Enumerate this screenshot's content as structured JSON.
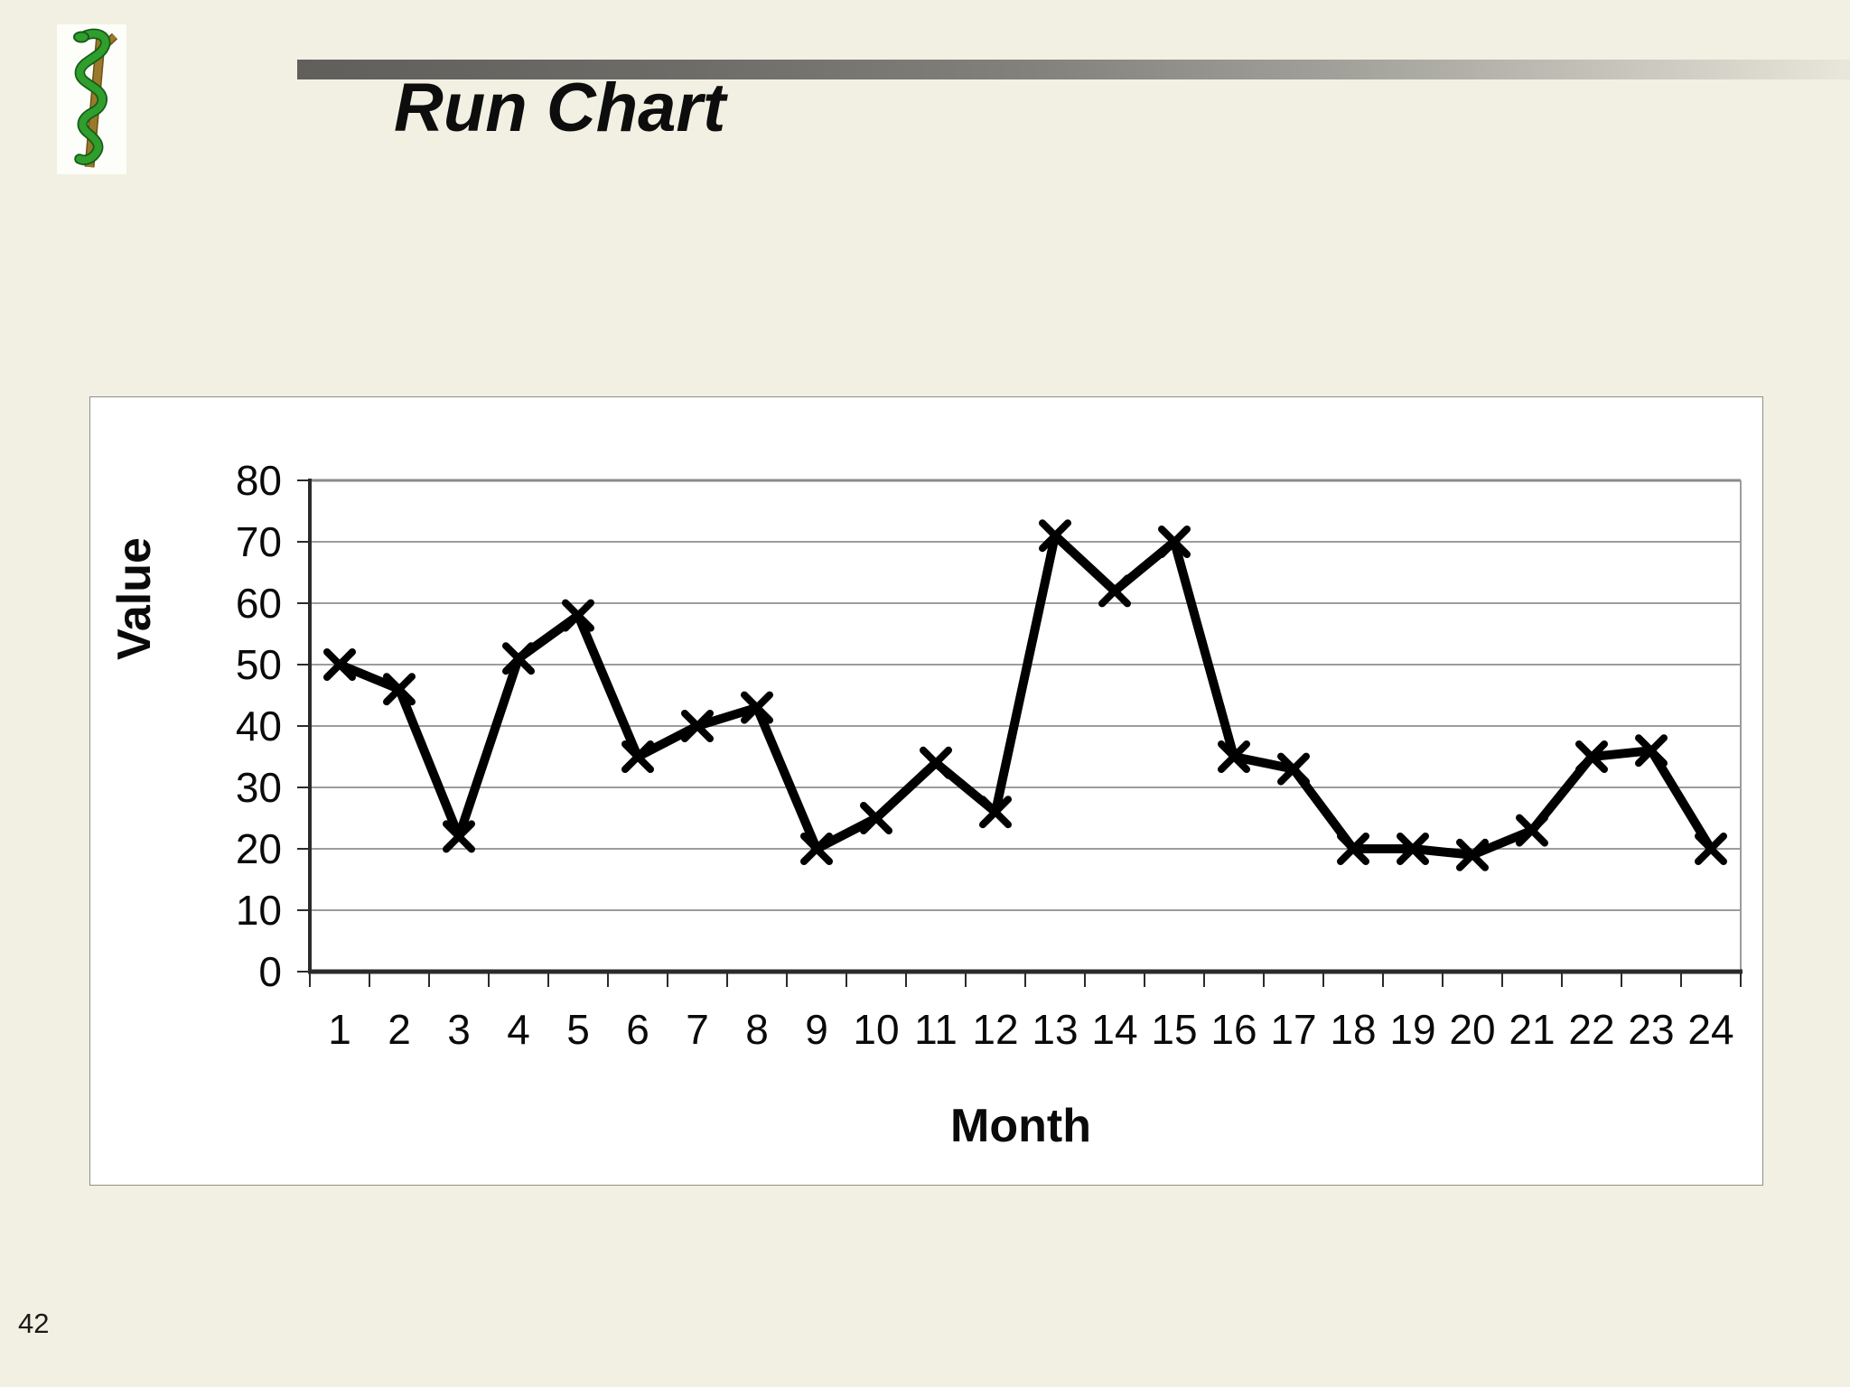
{
  "slide": {
    "title": "Run Chart",
    "page_number": "42",
    "background_color": "#f1f0e2"
  },
  "logo": {
    "name": "rod-of-asclepius-logo",
    "staff_color": "#9a7a2a",
    "snake_color": "#2f9e2d",
    "snake_outline_color": "#155d18"
  },
  "chart_data": {
    "type": "line",
    "title": "",
    "categories": [
      1,
      2,
      3,
      4,
      5,
      6,
      7,
      8,
      9,
      10,
      11,
      12,
      13,
      14,
      15,
      16,
      17,
      18,
      19,
      20,
      21,
      22,
      23,
      24
    ],
    "values": [
      50,
      46,
      22,
      51,
      58,
      35,
      40,
      43,
      20,
      25,
      34,
      26,
      71,
      62,
      70,
      35,
      33,
      20,
      20,
      19,
      23,
      35,
      36,
      20
    ],
    "xlabel": "Month",
    "ylabel": "Value",
    "ylim": [
      0,
      80
    ],
    "yticks": [
      0,
      10,
      20,
      30,
      40,
      50,
      60,
      70,
      80
    ],
    "grid": true,
    "legend_position": "none",
    "line_color": "#000000",
    "marker": "x",
    "gridline_color": "#9c9c9c",
    "axis_color": "#2b2b2b",
    "label_color": "#0a0a0a"
  }
}
